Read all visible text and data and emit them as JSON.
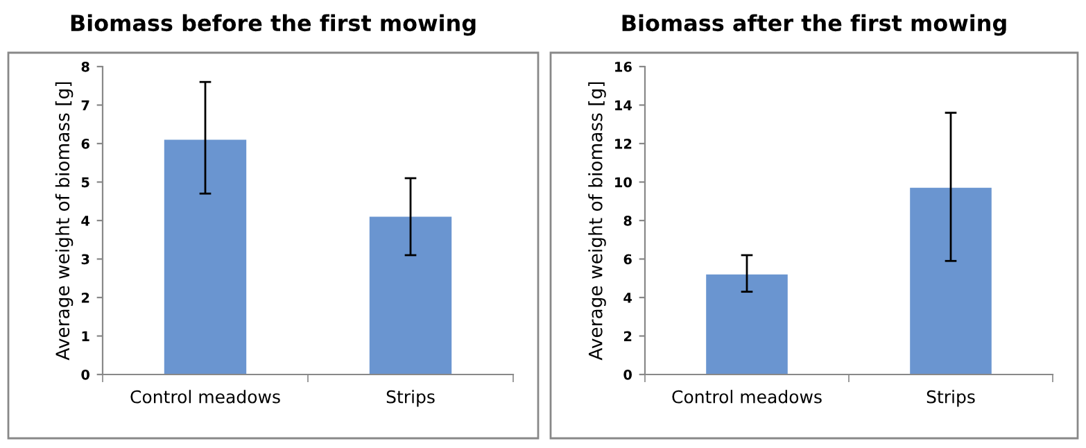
{
  "chart_data": [
    {
      "type": "bar",
      "title": "Biomass before the first mowing",
      "ylabel": "Average weight of biomass [g]",
      "categories": [
        "Control meadows",
        "Strips"
      ],
      "values": [
        6.1,
        4.1
      ],
      "errors": [
        [
          4.7,
          7.6
        ],
        [
          3.1,
          5.1
        ]
      ],
      "color": "#6a95d0",
      "ylim": [
        0,
        8
      ],
      "yticks": [
        0,
        1,
        2,
        3,
        4,
        5,
        6,
        7,
        8
      ]
    },
    {
      "type": "bar",
      "title": "Biomass after the first mowing",
      "ylabel": "Average weight of biomass [g]",
      "categories": [
        "Control meadows",
        "Strips"
      ],
      "values": [
        5.2,
        9.7
      ],
      "errors": [
        [
          4.3,
          6.2
        ],
        [
          5.9,
          13.6
        ]
      ],
      "color": "#6a95d0",
      "ylim": [
        0,
        16
      ],
      "yticks": [
        0,
        2,
        4,
        6,
        8,
        10,
        12,
        14,
        16
      ]
    }
  ]
}
